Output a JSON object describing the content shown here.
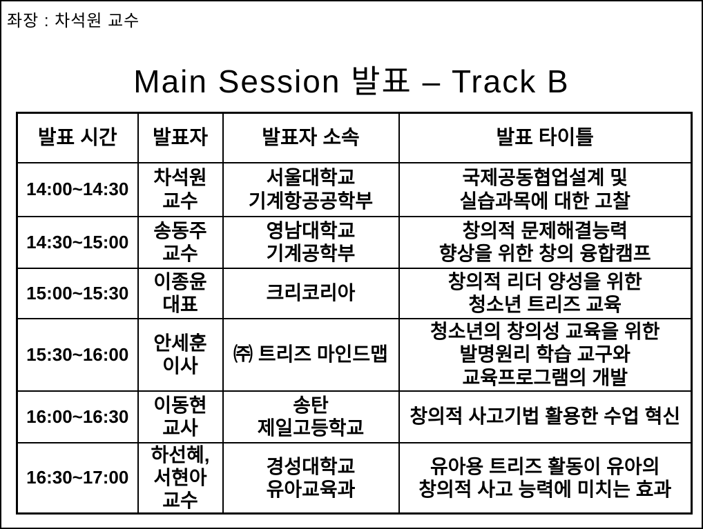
{
  "chair": {
    "label": "좌장 : 차석원 교수"
  },
  "title": "Main Session 발표 – Track B",
  "colors": {
    "background": "#ffffff",
    "text": "#000000",
    "border": "#000000"
  },
  "table": {
    "headers": [
      "발표 시간",
      "발표자",
      "발표자 소속",
      "발표 타이틀"
    ],
    "rows": [
      {
        "time": "14:00~14:30",
        "presenter": [
          "차석원",
          "교수"
        ],
        "affiliation": [
          "서울대학교",
          "기계항공공학부"
        ],
        "title": [
          "국제공동협업설계 및",
          "실습과목에 대한 고찰"
        ]
      },
      {
        "time": "14:30~15:00",
        "presenter": [
          "송동주",
          "교수"
        ],
        "affiliation": [
          "영남대학교",
          "기계공학부"
        ],
        "title": [
          "창의적 문제해결능력",
          "향상을 위한 창의 융합캠프"
        ]
      },
      {
        "time": "15:00~15:30",
        "presenter": [
          "이종윤",
          "대표"
        ],
        "affiliation": [
          "크리코리아"
        ],
        "title": [
          "창의적 리더 양성을 위한",
          "청소년 트리즈 교육"
        ]
      },
      {
        "time": "15:30~16:00",
        "presenter": [
          "안세훈",
          "이사"
        ],
        "affiliation": [
          "㈜ 트리즈 마인드맵"
        ],
        "title": [
          "청소년의 창의성 교육을 위한",
          "발명원리 학습 교구와",
          "교육프로그램의 개발"
        ]
      },
      {
        "time": "16:00~16:30",
        "presenter": [
          "이동현",
          "교사"
        ],
        "affiliation": [
          "송탄",
          "제일고등학교"
        ],
        "title": [
          "창의적 사고기법 활용한 수업 혁신"
        ]
      },
      {
        "time": "16:30~17:00",
        "presenter": [
          "하선혜,",
          "서현아",
          "교수"
        ],
        "affiliation": [
          "경성대학교",
          "유아교육과"
        ],
        "title": [
          "유아용 트리즈 활동이 유아의",
          "창의적 사고 능력에 미치는 효과"
        ]
      }
    ]
  }
}
